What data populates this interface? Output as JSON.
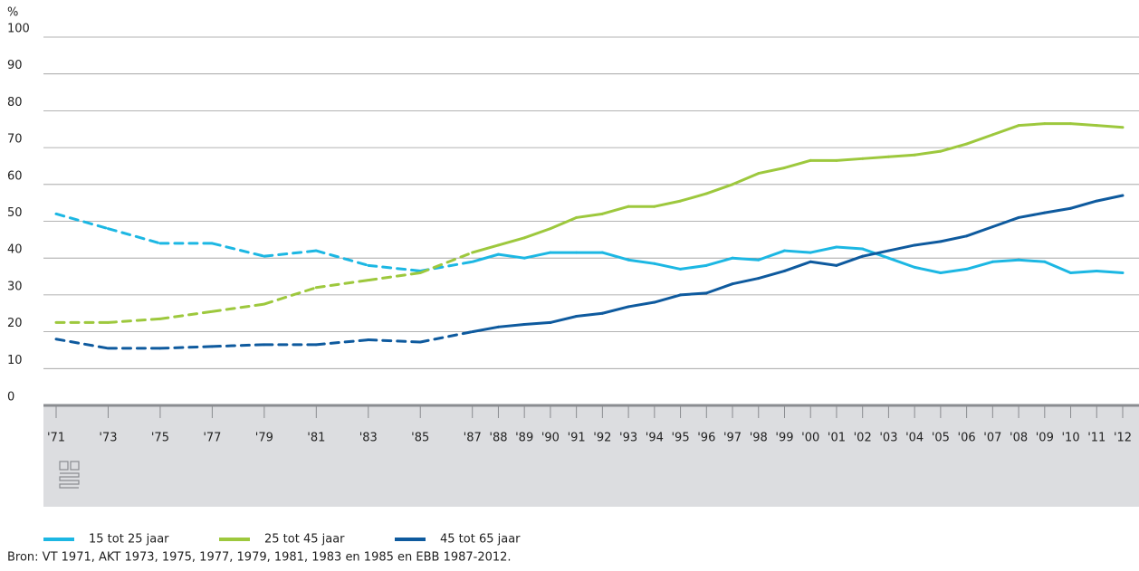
{
  "chart_data": {
    "type": "line",
    "y_label": "%",
    "x": [
      1971,
      1973,
      1975,
      1977,
      1979,
      1981,
      1983,
      1985,
      1987,
      1988,
      1989,
      1990,
      1991,
      1992,
      1993,
      1994,
      1995,
      1996,
      1997,
      1998,
      1999,
      2000,
      2001,
      2002,
      2003,
      2004,
      2005,
      2006,
      2007,
      2008,
      2009,
      2010,
      2011,
      2012
    ],
    "series": [
      {
        "name": "15 tot 25 jaar",
        "color": "#1cb7e3",
        "values": [
          52,
          48,
          44,
          44,
          40.5,
          42,
          38,
          36.5,
          39,
          41,
          40,
          41.5,
          41.5,
          41.5,
          39.5,
          38.5,
          37,
          38,
          40,
          39.5,
          42,
          41.5,
          43,
          42.5,
          40,
          37.5,
          36,
          37,
          39,
          39.5,
          39,
          36,
          36.5,
          36
        ]
      },
      {
        "name": "25 tot 45 jaar",
        "color": "#9dc83d",
        "values": [
          22.5,
          22.5,
          23.5,
          25.5,
          27.5,
          32,
          34,
          36,
          41.5,
          43.5,
          45.5,
          48,
          51,
          52,
          54,
          54,
          55.5,
          57.5,
          60,
          63,
          64.5,
          66.5,
          66.5,
          67,
          67.5,
          68,
          69,
          71,
          73.5,
          76,
          76.5,
          76.5,
          76,
          75.5
        ]
      },
      {
        "name": "45 tot 65 jaar",
        "color": "#0e5a9e",
        "values": [
          18,
          15.5,
          15.5,
          16,
          16.5,
          16.5,
          17.8,
          17.2,
          20,
          21.3,
          22,
          22.5,
          24.2,
          25,
          26.8,
          28,
          30,
          30.5,
          33,
          34.5,
          36.5,
          39,
          38,
          40.5,
          42,
          43.5,
          44.5,
          46,
          48.5,
          51,
          52.3,
          53.5,
          55.5,
          57
        ]
      }
    ],
    "xlim": [
      1971,
      2012
    ],
    "xticks": [
      {
        "value": 1971,
        "label": "'71"
      },
      {
        "value": 1973,
        "label": "'73"
      },
      {
        "value": 1975,
        "label": "'75"
      },
      {
        "value": 1977,
        "label": "'77"
      },
      {
        "value": 1979,
        "label": "'79"
      },
      {
        "value": 1981,
        "label": "'81"
      },
      {
        "value": 1983,
        "label": "'83"
      },
      {
        "value": 1985,
        "label": "'85"
      },
      {
        "value": 1987,
        "label": "'87"
      },
      {
        "value": 1988,
        "label": "'88"
      },
      {
        "value": 1989,
        "label": "'89"
      },
      {
        "value": 1990,
        "label": "'90"
      },
      {
        "value": 1991,
        "label": "'91"
      },
      {
        "value": 1992,
        "label": "'92"
      },
      {
        "value": 1993,
        "label": "'93"
      },
      {
        "value": 1994,
        "label": "'94"
      },
      {
        "value": 1995,
        "label": "'95"
      },
      {
        "value": 1996,
        "label": "'96"
      },
      {
        "value": 1997,
        "label": "'97"
      },
      {
        "value": 1998,
        "label": "'98"
      },
      {
        "value": 1999,
        "label": "'99"
      },
      {
        "value": 2000,
        "label": "'00"
      },
      {
        "value": 2001,
        "label": "'01"
      },
      {
        "value": 2002,
        "label": "'02"
      },
      {
        "value": 2003,
        "label": "'03"
      },
      {
        "value": 2004,
        "label": "'04"
      },
      {
        "value": 2005,
        "label": "'05"
      },
      {
        "value": 2006,
        "label": "'06"
      },
      {
        "value": 2007,
        "label": "'07"
      },
      {
        "value": 2008,
        "label": "'08"
      },
      {
        "value": 2009,
        "label": "'09"
      },
      {
        "value": 2010,
        "label": "'10"
      },
      {
        "value": 2011,
        "label": "'11"
      },
      {
        "value": 2012,
        "label": "'12"
      }
    ],
    "ylim": [
      0,
      100
    ],
    "yticks": [
      0,
      10,
      20,
      30,
      40,
      50,
      60,
      70,
      80,
      90,
      100
    ],
    "grid": true,
    "source": "Bron: VT 1971, AKT 1973, 1975, 1977, 1979, 1981, 1983 en 1985 en EBB 1987-2012."
  }
}
